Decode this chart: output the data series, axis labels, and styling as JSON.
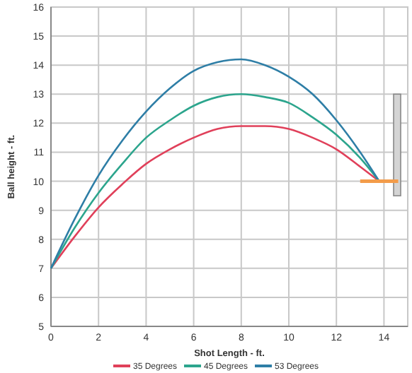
{
  "chart_data": {
    "type": "line",
    "xlabel": "Shot Length - ft.",
    "ylabel": "Ball height - ft.",
    "xlim": [
      0,
      15
    ],
    "ylim": [
      5,
      16
    ],
    "xticks": [
      0,
      2,
      4,
      6,
      8,
      10,
      12,
      14
    ],
    "yticks": [
      5,
      6,
      7,
      8,
      9,
      10,
      11,
      12,
      13,
      14,
      15,
      16
    ],
    "grid": true,
    "legend": "bottom",
    "marker": "none",
    "line_style": "solid",
    "series": [
      {
        "name": "35 Degrees",
        "color": "#e0405a",
        "x": [
          0,
          1,
          2,
          3,
          4,
          5,
          6,
          7,
          8,
          9,
          10,
          11,
          12,
          13,
          13.8
        ],
        "values": [
          7,
          8.1,
          9.1,
          9.9,
          10.6,
          11.1,
          11.5,
          11.8,
          11.9,
          11.9,
          11.8,
          11.5,
          11.1,
          10.5,
          10
        ]
      },
      {
        "name": "45 Degrees",
        "color": "#2ca58d",
        "x": [
          0,
          1,
          2,
          3,
          4,
          5,
          6,
          7,
          8,
          9,
          10,
          11,
          12,
          13,
          13.8
        ],
        "values": [
          7,
          8.4,
          9.6,
          10.6,
          11.5,
          12.1,
          12.6,
          12.9,
          13,
          12.9,
          12.7,
          12.2,
          11.6,
          10.8,
          10
        ]
      },
      {
        "name": "53 Degrees",
        "color": "#2e7ea6",
        "x": [
          0,
          1,
          2,
          3,
          4,
          5,
          6,
          7,
          8,
          9,
          10,
          11,
          12,
          13,
          13.8
        ],
        "values": [
          7,
          8.7,
          10.2,
          11.4,
          12.4,
          13.2,
          13.8,
          14.1,
          14.2,
          14,
          13.6,
          13,
          12.1,
          11,
          10
        ]
      },
      {
        "color": "#f39c4a",
        "x": [
          13,
          14.6
        ],
        "values": [
          10,
          10
        ]
      }
    ]
  }
}
